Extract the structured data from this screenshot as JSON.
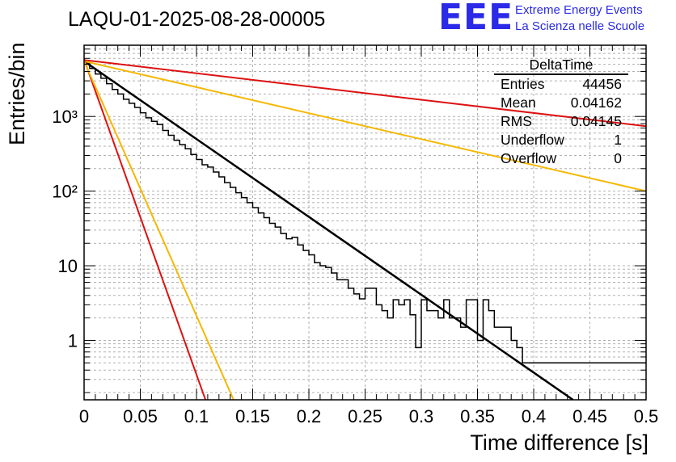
{
  "header": {
    "run_title": "LAQU-01-2025-08-28-00005",
    "logo_text": "EEE",
    "logo_line1": "Extreme Energy Events",
    "logo_line2": "La Scienza nelle Scuole",
    "logo_color": "#2a2ae8"
  },
  "stats": {
    "title": "DeltaTime",
    "rows": [
      {
        "label": "Entries",
        "value": "44456"
      },
      {
        "label": "Mean",
        "value": "0.04162"
      },
      {
        "label": "RMS",
        "value": "0.04145"
      },
      {
        "label": "Underflow",
        "value": "1"
      },
      {
        "label": "Overflow",
        "value": "0"
      }
    ]
  },
  "chart_data": {
    "type": "line",
    "title": "LAQU-01-2025-08-28-00005",
    "xlabel": "Time difference [s]",
    "ylabel": "Entries/bin",
    "xlim": [
      0,
      0.5
    ],
    "ylim": [
      0.16,
      9000
    ],
    "yscale": "log",
    "grid": true,
    "x_ticks": [
      0,
      0.05,
      0.1,
      0.15,
      0.2,
      0.25,
      0.3,
      0.35,
      0.4,
      0.45,
      0.5
    ],
    "x_tick_labels": [
      "0",
      "0.05",
      "0.1",
      "0.15",
      "0.2",
      "0.25",
      "0.3",
      "0.35",
      "0.4",
      "0.45",
      "0.5"
    ],
    "y_ticks": [
      1,
      10,
      100,
      1000
    ],
    "y_tick_labels": [
      "1",
      "10",
      "10²",
      "10³"
    ],
    "histogram": {
      "name": "DeltaTime",
      "bin_width": 0.005,
      "bin_edges_start": 0,
      "color": "#000000",
      "counts": [
        5200,
        4400,
        3700,
        3250,
        2750,
        2300,
        2000,
        1700,
        1500,
        1320,
        1120,
        960,
        860,
        780,
        650,
        560,
        480,
        420,
        370,
        310,
        265,
        225,
        210,
        180,
        155,
        130,
        112,
        95,
        82,
        70,
        60,
        51,
        44,
        37,
        33,
        27,
        23,
        24,
        19,
        16,
        14,
        11,
        10,
        9.5,
        8,
        6.5,
        6.5,
        5,
        4.2,
        3.6,
        5,
        5,
        3,
        2.5,
        2,
        3.5,
        3,
        3.5,
        2.2,
        0.8,
        3.5,
        2.5,
        2.5,
        2,
        3.5,
        2,
        2,
        1.5,
        3.5,
        3.5,
        1,
        3.5,
        2.5,
        1.5,
        1.5,
        1.5,
        1,
        0.8,
        0.5,
        0.5,
        0.5,
        0.5,
        0.5,
        0.5,
        0.5,
        0.5,
        0.5,
        0.5,
        0.5,
        0.5,
        0.5,
        0.5,
        0.5,
        0.5,
        0.5,
        0.5,
        0.5,
        0.5,
        0.5,
        0.5
      ],
      "highlight_bins": [
        {
          "bin": 59,
          "count": 0.8
        },
        {
          "bin": 77,
          "count": 0.8
        }
      ]
    },
    "series": [
      {
        "name": "fit",
        "type": "exponential",
        "color": "#000000",
        "points": [
          [
            0,
            5500
          ],
          [
            0.435,
            0.16
          ]
        ]
      },
      {
        "name": "red-slow",
        "type": "exponential",
        "color": "#dd1111",
        "points": [
          [
            0,
            5700
          ],
          [
            0.5,
            740
          ]
        ]
      },
      {
        "name": "orange-slow",
        "type": "exponential",
        "color": "#f5b800",
        "points": [
          [
            0,
            5500
          ],
          [
            0.5,
            100
          ]
        ]
      },
      {
        "name": "red-fast",
        "type": "exponential",
        "color": "#dd1111",
        "points": [
          [
            0,
            5800
          ],
          [
            0.108,
            0.16
          ]
        ]
      },
      {
        "name": "orange-fast",
        "type": "exponential",
        "color": "#f5b800",
        "points": [
          [
            0,
            5500
          ],
          [
            0.133,
            0.16
          ]
        ]
      }
    ]
  }
}
